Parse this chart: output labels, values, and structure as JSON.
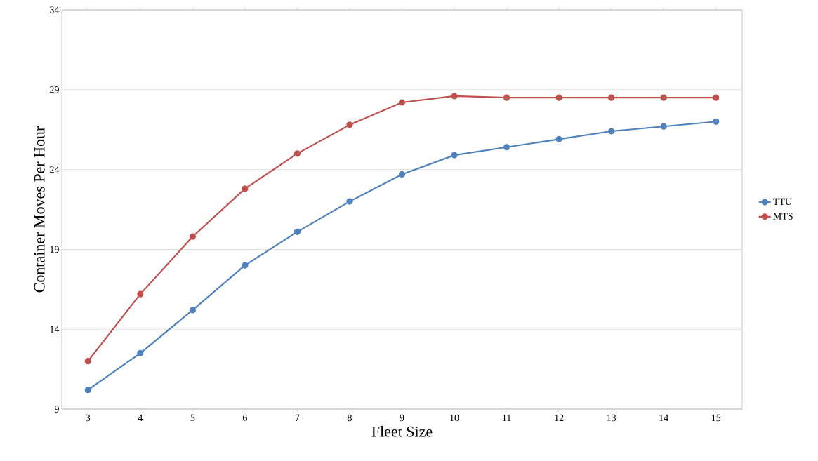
{
  "chart_data": {
    "type": "line",
    "xlabel": "Fleet Size",
    "ylabel": "Container Moves Per Hour",
    "categories": [
      "3",
      "4",
      "5",
      "6",
      "7",
      "8",
      "9",
      "10",
      "11",
      "12",
      "13",
      "14",
      "15"
    ],
    "series": [
      {
        "name": "TTU",
        "color": "#4f81bd",
        "values": [
          10.2,
          12.5,
          15.2,
          18.0,
          20.1,
          22.0,
          23.7,
          24.9,
          25.4,
          25.9,
          26.4,
          26.7,
          27.0
        ]
      },
      {
        "name": "MTS",
        "color": "#c0504d",
        "values": [
          12.0,
          16.2,
          19.8,
          22.8,
          25.0,
          26.8,
          28.2,
          28.6,
          28.5,
          28.5,
          28.5,
          28.5,
          28.5
        ]
      }
    ],
    "ylim": [
      9,
      34
    ],
    "yticks": [
      9,
      14,
      19,
      24,
      29,
      34
    ],
    "grid": "y",
    "legend": "right",
    "marker": "circle",
    "line_style": "solid"
  }
}
